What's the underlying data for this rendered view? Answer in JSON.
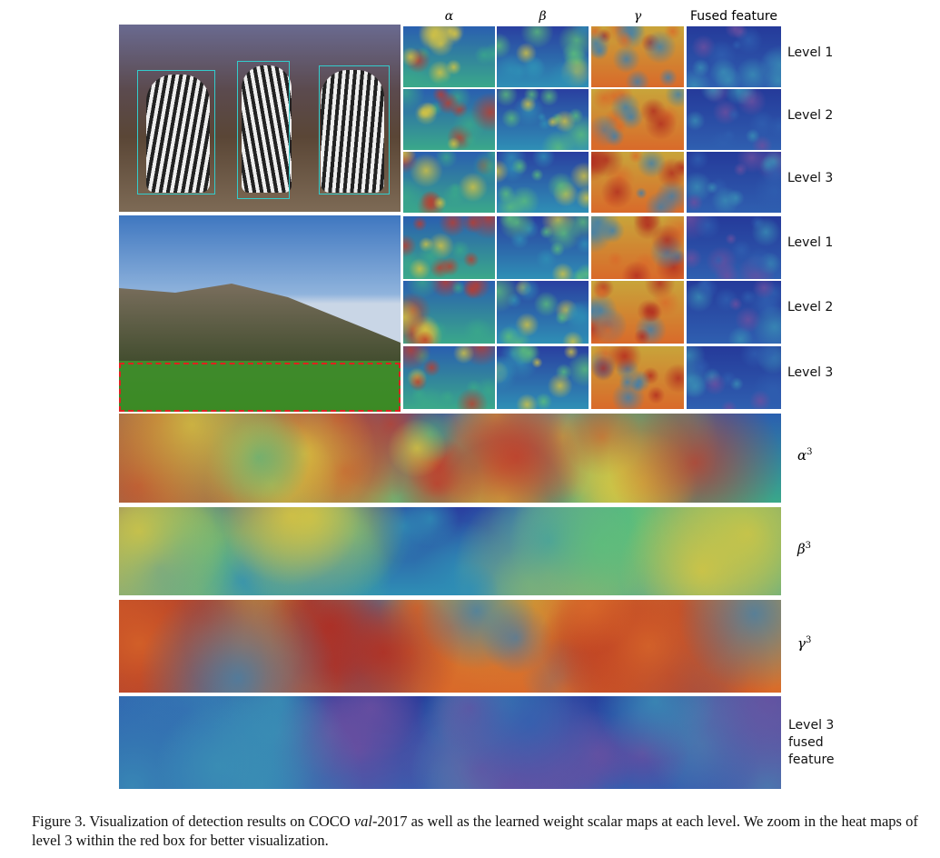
{
  "header": {
    "columns": [
      "α",
      "β",
      "γ",
      "Fused feature"
    ]
  },
  "panels": [
    {
      "rows": [
        "Level 1",
        "Level 2",
        "Level 3"
      ]
    },
    {
      "rows": [
        "Level 1",
        "Level 2",
        "Level 3"
      ]
    }
  ],
  "strips": [
    {
      "label": "α",
      "sup": "3"
    },
    {
      "label": "β",
      "sup": "3"
    },
    {
      "label": "γ",
      "sup": "3"
    },
    {
      "label": "Level 3 fused feature"
    }
  ],
  "caption": {
    "prefix": "Figure 3. Visualization of detection results on COCO ",
    "italic": "val",
    "suffix": "-2017 as well as the learned weight scalar maps at each level. We zoom in the heat maps of level 3 within the red box for better visualization."
  }
}
